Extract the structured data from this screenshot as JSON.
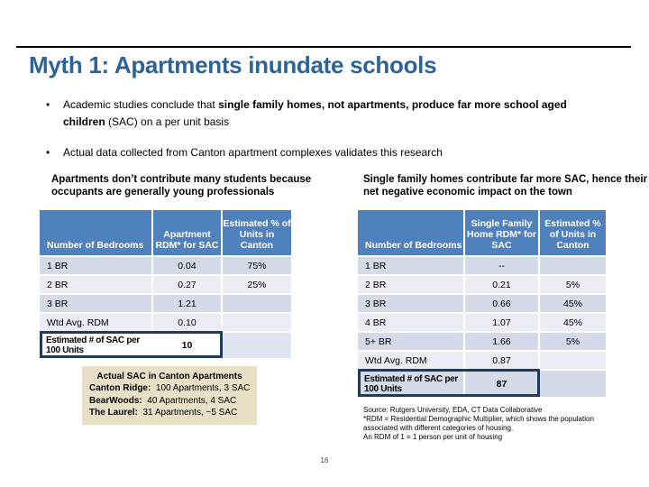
{
  "colors": {
    "title": "#2F6398",
    "table_header": "#4F81BD",
    "band_dark": "#D3DBE9",
    "band_light": "#EAEDF4",
    "total_outline": "#20395C",
    "callout_bg": "#E7E0C7"
  },
  "slide": {
    "title": "Myth 1: Apartments inundate schools",
    "page_number": "16"
  },
  "bullets": [
    {
      "pre": "Academic studies conclude that ",
      "bold": "single family homes, not apartments, produce far more school aged children",
      "post": " (SAC) on a per unit basis"
    },
    {
      "pre": "Actual data collected from Canton apartment complexes validates this research",
      "bold": "",
      "post": ""
    }
  ],
  "left_panel": {
    "heading": "Apartments don’t contribute many students because occupants are generally young professionals",
    "table": {
      "headers": [
        "Number of Bedrooms",
        "Apartment RDM* for SAC",
        "Estimated % of Units in Canton"
      ],
      "rows": [
        [
          "1 BR",
          "0.04",
          "75%"
        ],
        [
          "2 BR",
          "0.27",
          "25%"
        ],
        [
          "3 BR",
          "1.21",
          ""
        ],
        [
          "Wtd Avg. RDM",
          "0.10",
          ""
        ]
      ],
      "total_row": {
        "label": "Estimated # of SAC per 100 Units",
        "value": "10"
      }
    }
  },
  "right_panel": {
    "heading": "Single family homes contribute far more SAC, hence their net negative economic impact on the town",
    "table": {
      "headers": [
        "Number of Bedrooms",
        "Single Family Home RDM* for SAC",
        "Estimated % of Units in Canton"
      ],
      "rows": [
        [
          "1 BR",
          "--",
          ""
        ],
        [
          "2 BR",
          "0.21",
          "5%"
        ],
        [
          "3 BR",
          "0.66",
          "45%"
        ],
        [
          "4 BR",
          "1.07",
          "45%"
        ],
        [
          "5+ BR",
          "1.66",
          "5%"
        ],
        [
          "Wtd Avg. RDM",
          "0.87",
          ""
        ]
      ],
      "total_row": {
        "label": "Estimated # of SAC per 100 Units",
        "value": "87"
      }
    }
  },
  "callout": {
    "heading": "Actual SAC in Canton Apartments",
    "lines": [
      {
        "label": "Canton Ridge:",
        "value": "  100 Apartments, 3 SAC"
      },
      {
        "label": "BearWoods:",
        "value": "  40 Apartments, 4 SAC"
      },
      {
        "label": "The Laurel:",
        "value": "  31 Apartments, ~5 SAC"
      }
    ]
  },
  "notes": {
    "source": "Source: Rutgers University, EDA, CT Data Collaborative",
    "rdm_definition": "*RDM = Residential Demographic Multiplier, which shows the population associated with different categories of housing.",
    "rdm_scale": "An RDM of 1 = 1 person per unit of housing"
  }
}
